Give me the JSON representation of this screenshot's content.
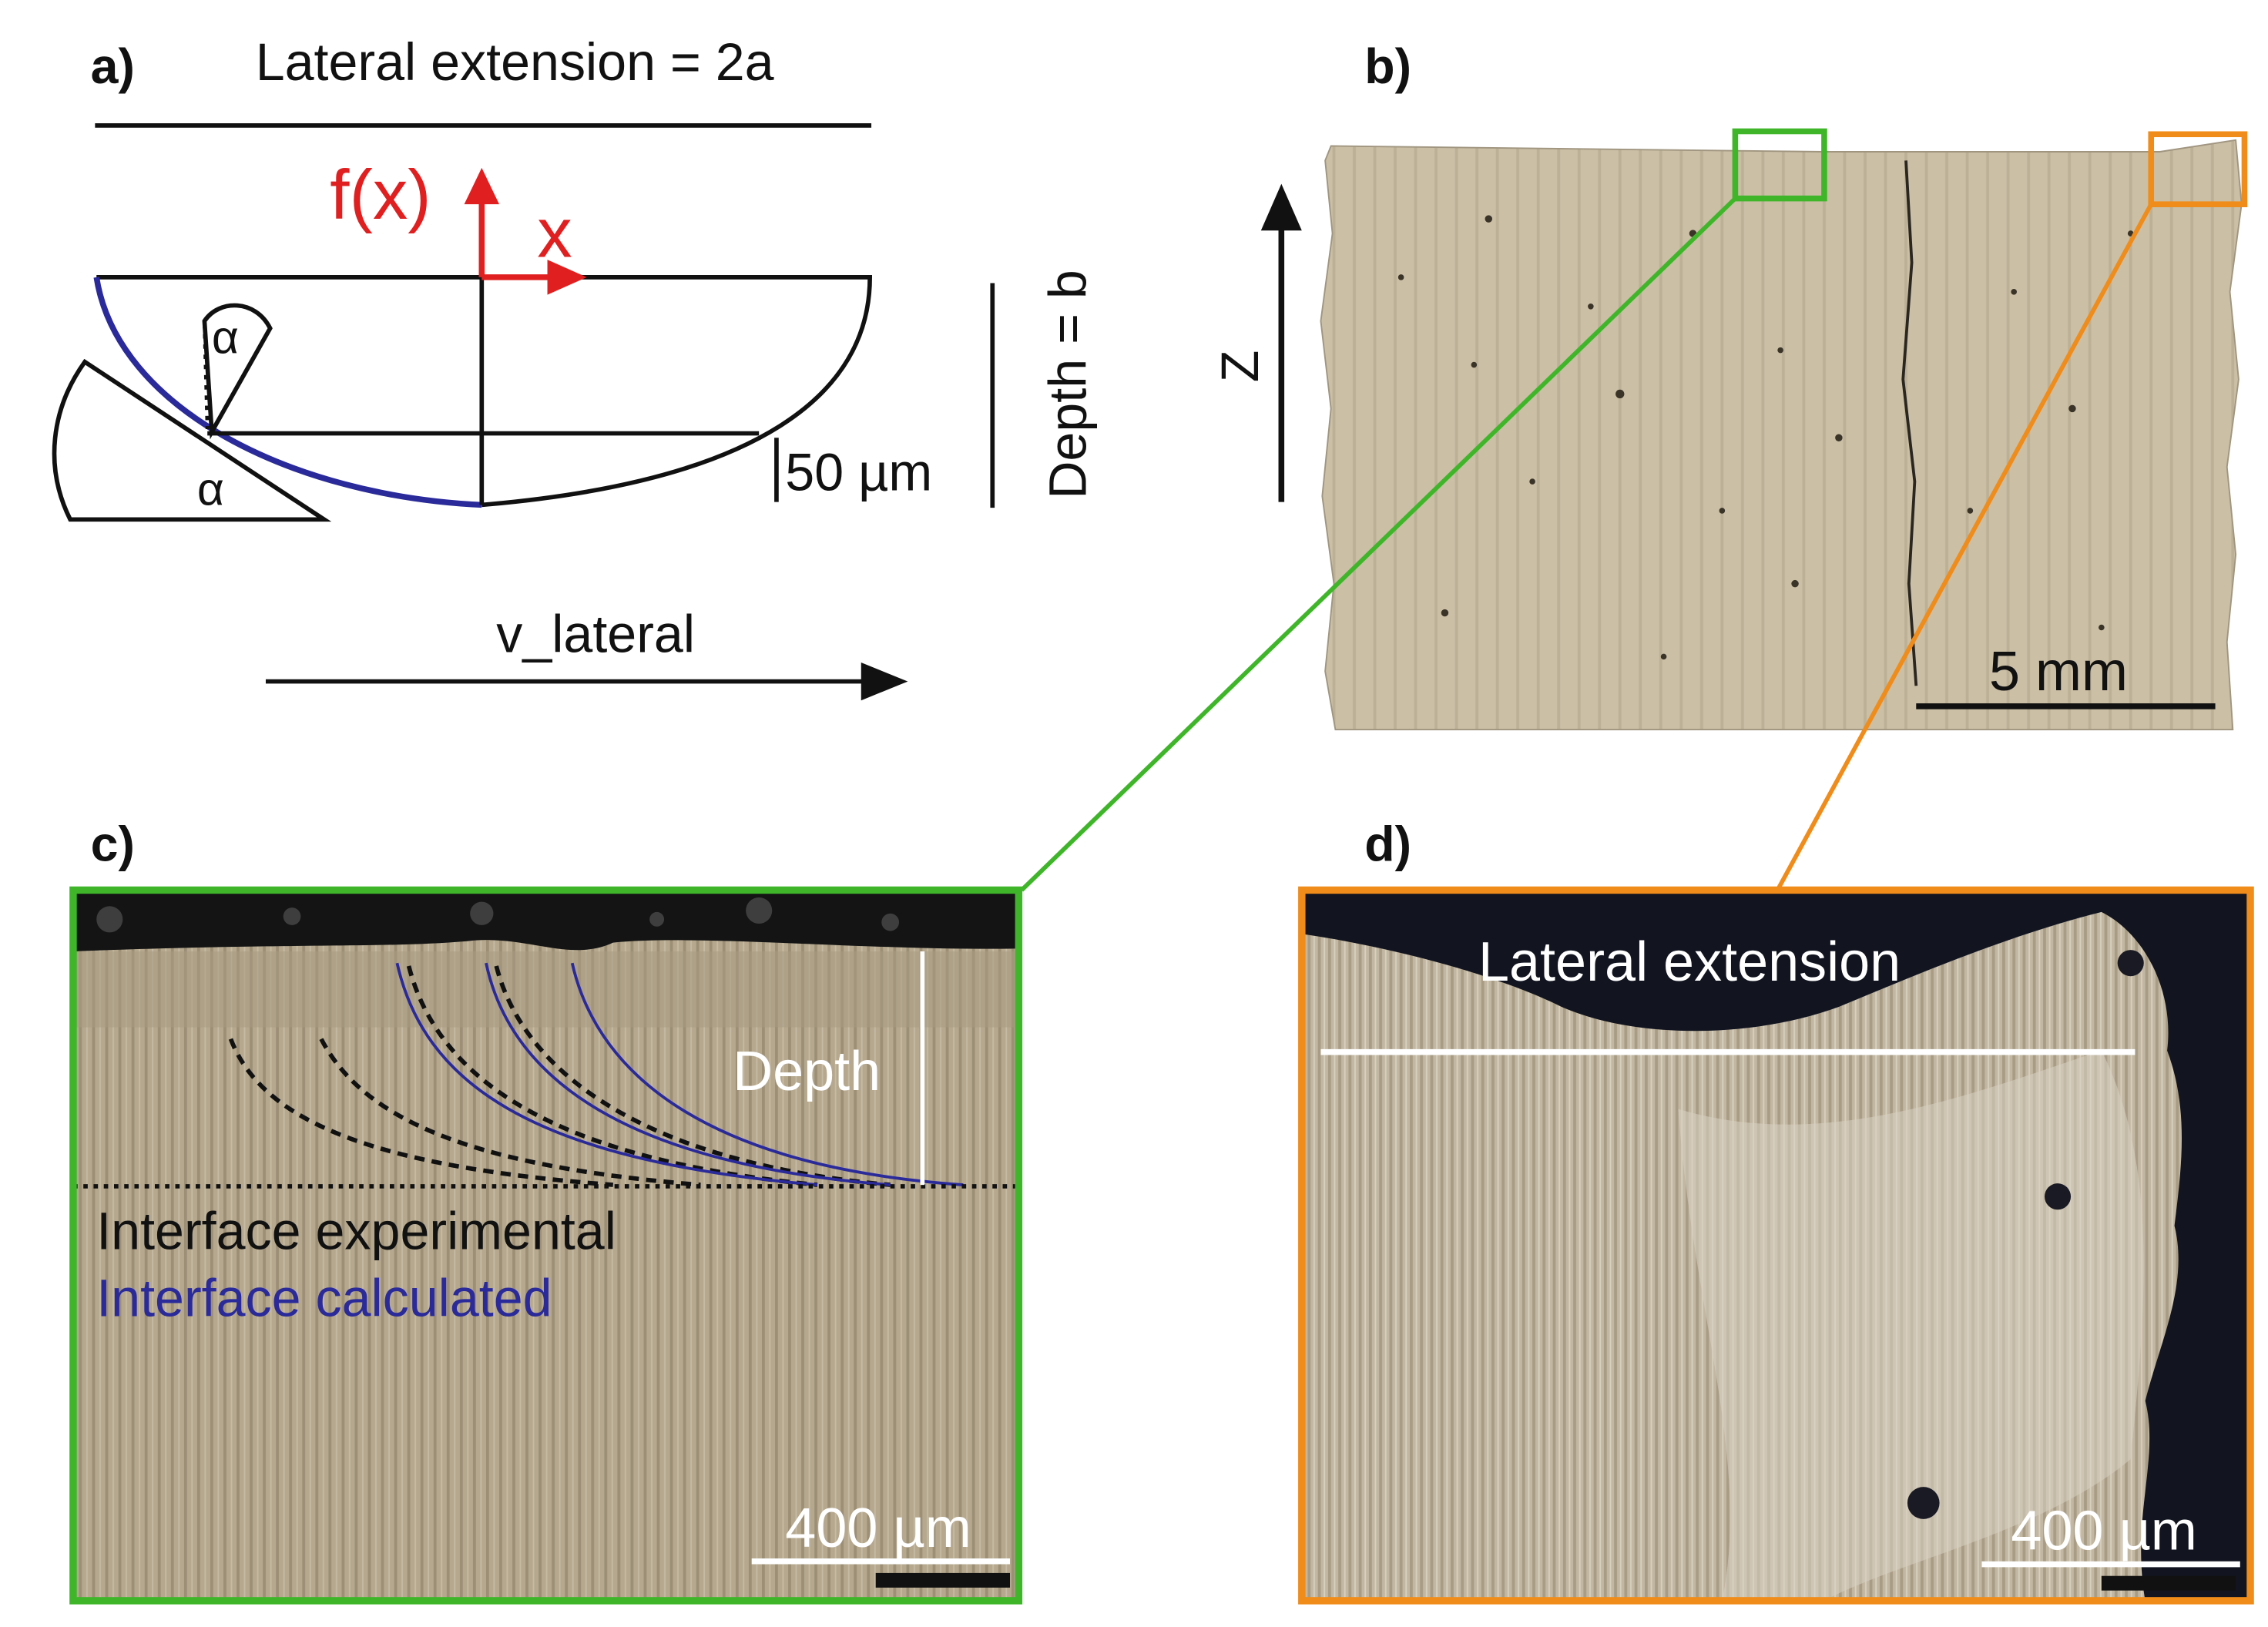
{
  "panel_a": {
    "label": "a)",
    "title": "Lateral extension = 2a",
    "fx_label": "f(x)",
    "x_label": "x",
    "alpha_top": "α",
    "alpha_bottom": "α",
    "scale_label": "50 µm",
    "depth_label": "Depth = b",
    "velocity_label": "v_lateral",
    "colors": {
      "axis": "#e02020",
      "profile": "#2a2a9a",
      "line": "#111111"
    }
  },
  "panel_b": {
    "label": "b)",
    "axis_label": "Z",
    "scale_label": "5 mm",
    "colors": {
      "box_c": "#3fb62a",
      "box_d": "#f08c1a",
      "sample": "#c9bca3"
    }
  },
  "panel_c": {
    "label": "c)",
    "depth_label": "Depth",
    "legend_experimental": "Interface experimental",
    "legend_calculated": "Interface calculated",
    "scale_label": "400 µm",
    "colors": {
      "frame": "#3fb62a",
      "calculated": "#2a2a9a",
      "experimental": "#111111"
    }
  },
  "panel_d": {
    "label": "d)",
    "lateral_label": "Lateral extension",
    "scale_label": "400 µm",
    "colors": {
      "frame": "#f08c1a"
    }
  }
}
